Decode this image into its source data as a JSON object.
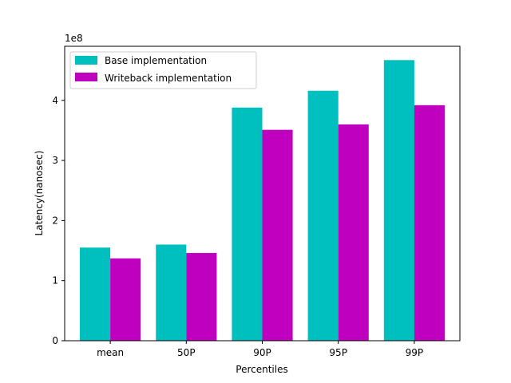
{
  "chart_data": {
    "type": "bar",
    "title": "",
    "xlabel": "Percentiles",
    "ylabel": "Latency(nanosec)",
    "y_multiplier_label": "1e8",
    "categories": [
      "mean",
      "50P",
      "90P",
      "95P",
      "99P"
    ],
    "series": [
      {
        "name": "Base implementation",
        "color": "#00bfbf",
        "values": [
          155000000,
          160000000,
          388000000,
          416000000,
          467000000
        ]
      },
      {
        "name": "Writeback implementation",
        "color": "#bf00bf",
        "values": [
          137000000,
          146000000,
          351000000,
          360000000,
          392000000
        ]
      }
    ],
    "ylim": [
      0,
      490000000
    ],
    "yticks": [
      0,
      100000000,
      200000000,
      300000000,
      400000000
    ],
    "ytick_labels": [
      "0",
      "1",
      "2",
      "3",
      "4"
    ],
    "legend_position": "top-left",
    "grid": false
  }
}
